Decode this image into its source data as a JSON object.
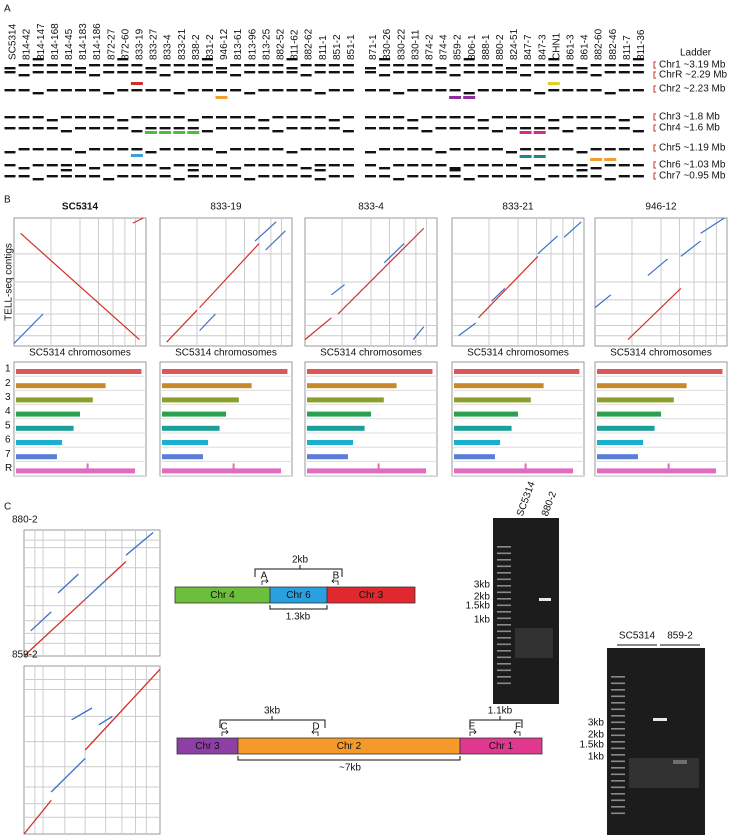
{
  "panel_a": {
    "label": "A",
    "ladder": "Ladder",
    "lanes": [
      {
        "name": "SC5314",
        "color": "#2b3f9e"
      },
      {
        "name": "814-42",
        "color": "#2b3f9e"
      },
      {
        "name": "814-147",
        "color": "#2b3f9e"
      },
      {
        "name": "814-168",
        "color": "#2b3f9e"
      },
      {
        "name": "814-45",
        "color": "#2b3f9e"
      },
      {
        "name": "814-183",
        "color": "#2b3f9e"
      },
      {
        "name": "814-186",
        "color": "#2b3f9e"
      },
      {
        "name": "872-27",
        "color": "#2b3f9e"
      },
      {
        "name": "872-60",
        "color": "#2b3f9e"
      },
      {
        "name": "833-19",
        "color": "#2b3f9e"
      },
      {
        "name": "833-27",
        "color": "#2b3f9e"
      },
      {
        "name": "833-4",
        "color": "#2b3f9e"
      },
      {
        "name": "833-21",
        "color": "#2b3f9e"
      },
      {
        "name": "838-2",
        "color": "#2b3f9e"
      },
      {
        "name": "831-2",
        "color": "#2b3f9e"
      },
      {
        "name": "946-12",
        "color": "#2b3f9e"
      },
      {
        "name": "813-61",
        "color": "#2b3f9e"
      },
      {
        "name": "813-96",
        "color": "#2b3f9e"
      },
      {
        "name": "813-25",
        "color": "#2b3f9e"
      },
      {
        "name": "882-52",
        "color": "#2b3f9e"
      },
      {
        "name": "811-62",
        "color": "#2b3f9e"
      },
      {
        "name": "882-62",
        "color": "#2b3f9e"
      },
      {
        "name": "811-1",
        "color": "#2b3f9e"
      },
      {
        "name": "851-2",
        "color": "#2b3f9e"
      },
      {
        "name": "851-1",
        "color": "#2b3f9e"
      },
      {
        "name": "871-1",
        "color": "#1f9b8f"
      },
      {
        "name": "830-26",
        "color": "#7b3fa0"
      },
      {
        "name": "830-22",
        "color": "#7b3fa0"
      },
      {
        "name": "830-11",
        "color": "#7b3fa0"
      },
      {
        "name": "874-2",
        "color": "#111111"
      },
      {
        "name": "874-4",
        "color": "#111111"
      },
      {
        "name": "859-2",
        "color": "#f0a030"
      },
      {
        "name": "806-1",
        "color": "#f0a030"
      },
      {
        "name": "888-1",
        "color": "#f0a030"
      },
      {
        "name": "880-2",
        "color": "#f0a030"
      },
      {
        "name": "824-51",
        "color": "#8a2f2f"
      },
      {
        "name": "847-7",
        "color": "#8a2f2f"
      },
      {
        "name": "847-3",
        "color": "#8a2f2f"
      },
      {
        "name": "CHN1",
        "color": "#e07fc8"
      },
      {
        "name": "861-3",
        "color": "#1e90c8"
      },
      {
        "name": "861-4",
        "color": "#1e90c8"
      },
      {
        "name": "882-60",
        "color": "#d4184a"
      },
      {
        "name": "882-46",
        "color": "#d4184a"
      },
      {
        "name": "811-7",
        "color": "#d4184a"
      },
      {
        "name": "811-36",
        "color": "#2aa88a"
      }
    ],
    "chromosomes": [
      "Chr1 ~3.19 Mb",
      "ChrR ~2.29 Mb",
      "Chr2 ~2.23 Mb",
      "Chr3 ~1.8 Mb",
      "Chr4 ~1.6 Mb",
      "Chr5 ~1.19 Mb",
      "Chr6 ~1.03 Mb",
      "Chr7 ~0.95 Mb"
    ]
  },
  "panel_b": {
    "label": "B",
    "y_label": "TELL-seq contigs",
    "x_label": "SC5314 chromosomes",
    "strains": [
      "SC5314",
      "833-19",
      "833-4",
      "833-21",
      "946-12"
    ],
    "tracks": [
      "1",
      "2",
      "3",
      "4",
      "5",
      "6",
      "7",
      "R"
    ]
  },
  "panel_c": {
    "label": "C",
    "cases": [
      {
        "strain": "880-2",
        "color": "#f0a030",
        "spans": [
          "2kb"
        ],
        "segments": [
          "Chr 4",
          "Chr 6",
          "Chr 3"
        ],
        "primers": [
          "A",
          "B"
        ],
        "inner": "1.3kb",
        "gel_lanes": [
          "SC5314",
          "880-2"
        ],
        "sizes": [
          "3kb",
          "2kb",
          "1.5kb",
          "1kb"
        ]
      },
      {
        "strain": "859-2",
        "color": "#f0a030",
        "spans": [
          "3kb",
          "1.1kb"
        ],
        "segments": [
          "Chr 3",
          "Chr 2",
          "Chr 1"
        ],
        "primers": [
          "C",
          "D",
          "E",
          "F"
        ],
        "inner": "~7kb",
        "gel_lanes": [
          "SC5314",
          "859-2"
        ],
        "sizes": [
          "3kb",
          "2kb",
          "1.5kb",
          "1kb"
        ]
      }
    ]
  }
}
